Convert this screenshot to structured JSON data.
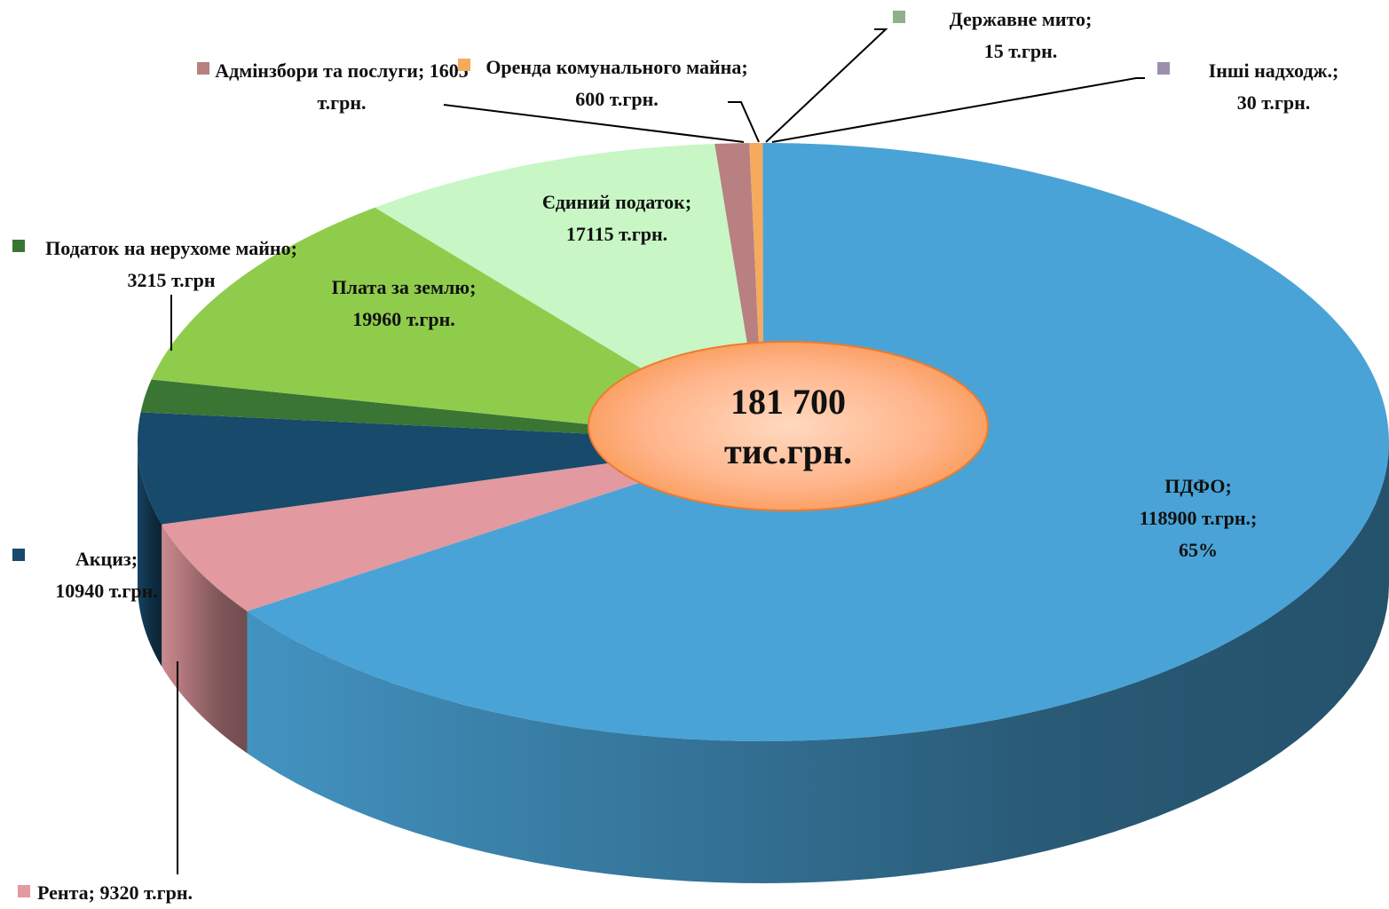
{
  "chart_data": {
    "type": "pie3d",
    "categories": [
      "ПДФО;",
      "Рента;",
      "Акциз;",
      "Податок на нерухоме майно;",
      "Плата за землю;",
      "Єдиний податок;",
      "Адмінзбори та послуги;",
      "Оренда комунального майна;",
      "Державне мито;",
      "Інші надходж.;"
    ],
    "values": [
      118900,
      9320,
      10940,
      3215,
      19960,
      17115,
      1605,
      600,
      15,
      30
    ],
    "value_labels": [
      "118900 т.грн.;",
      "9320 т.грн.",
      "10940 т.грн.",
      "3215 т.грн",
      "19960 т.грн.",
      "17115 т.грн.",
      "1605 т.грн.",
      "600 т.грн.",
      "15 т.грн.",
      "30 т.грн."
    ],
    "colors": [
      "#4aa3d6",
      "#e2999f",
      "#174a6b",
      "#3a7534",
      "#8fcc4c",
      "#c8f7c5",
      "#b88080",
      "#f5aa5e",
      "#8fb08a",
      "#9b8fad"
    ],
    "annotations": [
      "65%"
    ],
    "center_label": [
      "181 700",
      "тис.грн."
    ]
  }
}
